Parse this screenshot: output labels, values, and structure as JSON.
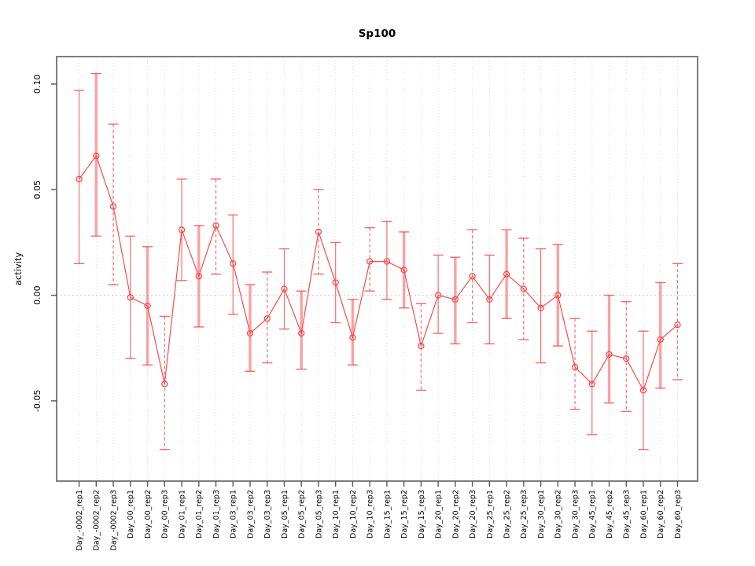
{
  "window": {
    "background": "#ffffff"
  },
  "chart_data": {
    "type": "line",
    "title": "Sp100",
    "xlabel": "",
    "ylabel": "activity",
    "ylim": [
      -0.088,
      0.113
    ],
    "yticks": [
      {
        "value": 0.1,
        "label": "0.10"
      },
      {
        "value": 0.05,
        "label": "0.05"
      },
      {
        "value": 0.0,
        "label": "0.00"
      },
      {
        "value": -0.05,
        "label": "-0.05"
      }
    ],
    "grid": {
      "vertical": "dotted line at every category",
      "horizontal": "dotted line at zero only"
    },
    "legend": "none",
    "colors": {
      "series": "#fb4b4b",
      "error_bar_thick": "#fc9090",
      "grid": "#dcdcdc",
      "zero_line": "#cccccc",
      "box": "#7d7d7d",
      "text": "#000000"
    },
    "categories": [
      "Day_-0002_rep1",
      "Day_-0002_rep2",
      "Day_-0002_rep3",
      "Day_00_rep1",
      "Day_00_rep2",
      "Day_00_rep3",
      "Day_01_rep1",
      "Day_01_rep2",
      "Day_01_rep3",
      "Day_03_rep1",
      "Day_03_rep2",
      "Day_03_rep3",
      "Day_05_rep1",
      "Day_05_rep2",
      "Day_05_rep3",
      "Day_10_rep1",
      "Day_10_rep2",
      "Day_10_rep3",
      "Day_15_rep1",
      "Day_15_rep2",
      "Day_15_rep3",
      "Day_20_rep1",
      "Day_20_rep2",
      "Day_20_rep3",
      "Day_25_rep1",
      "Day_25_rep2",
      "Day_25_rep3",
      "Day_30_rep1",
      "Day_30_rep2",
      "Day_30_rep3",
      "Day_45_rep1",
      "Day_45_rep2",
      "Day_45_rep3",
      "Day_60_rep1",
      "Day_60_rep2",
      "Day_60_rep3"
    ],
    "series": [
      {
        "name": "activity",
        "marker": "open-circle",
        "values": [
          0.055,
          0.066,
          0.042,
          -0.001,
          -0.005,
          -0.042,
          0.031,
          0.009,
          0.033,
          0.015,
          -0.018,
          -0.011,
          0.003,
          -0.018,
          0.03,
          0.006,
          -0.02,
          0.016,
          0.016,
          0.012,
          -0.024,
          0.0,
          -0.002,
          0.009,
          -0.002,
          0.01,
          0.003,
          -0.006,
          0.0,
          -0.034,
          -0.042,
          -0.028,
          -0.03,
          -0.045,
          -0.021,
          -0.014
        ],
        "err_low": [
          0.015,
          0.028,
          0.005,
          -0.03,
          -0.033,
          -0.073,
          0.007,
          -0.015,
          0.01,
          -0.009,
          -0.036,
          -0.032,
          -0.016,
          -0.035,
          0.01,
          -0.013,
          -0.033,
          0.002,
          -0.002,
          -0.006,
          -0.045,
          -0.018,
          -0.023,
          -0.013,
          -0.023,
          -0.011,
          -0.021,
          -0.032,
          -0.024,
          -0.054,
          -0.066,
          -0.051,
          -0.055,
          -0.073,
          -0.044,
          -0.04
        ],
        "err_high": [
          0.097,
          0.105,
          0.081,
          0.028,
          0.023,
          -0.01,
          0.055,
          0.033,
          0.055,
          0.038,
          0.005,
          0.011,
          0.022,
          0.002,
          0.05,
          0.025,
          -0.002,
          0.032,
          0.035,
          0.03,
          -0.004,
          0.019,
          0.018,
          0.031,
          0.019,
          0.031,
          0.027,
          0.022,
          0.024,
          -0.011,
          -0.017,
          0.0,
          -0.003,
          -0.017,
          0.006,
          0.015
        ]
      }
    ]
  }
}
